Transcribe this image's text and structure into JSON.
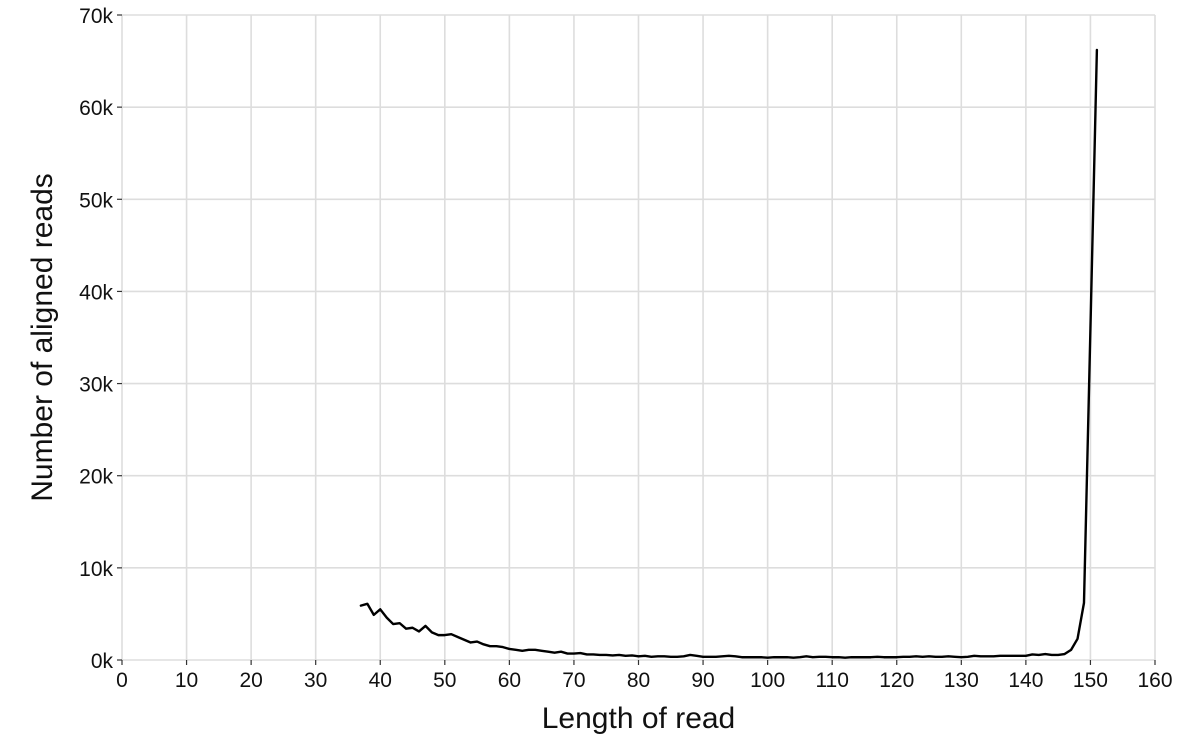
{
  "chart_data": {
    "type": "line",
    "xlabel": "Length of read",
    "ylabel": "Number of aligned reads",
    "xlim": [
      0,
      160
    ],
    "ylim": [
      0,
      70000
    ],
    "x_ticks": [
      0,
      10,
      20,
      30,
      40,
      50,
      60,
      70,
      80,
      90,
      100,
      110,
      120,
      130,
      140,
      150,
      160
    ],
    "x_tick_labels": [
      "0",
      "10",
      "20",
      "30",
      "40",
      "50",
      "60",
      "70",
      "80",
      "90",
      "100",
      "110",
      "120",
      "130",
      "140",
      "150",
      "160"
    ],
    "y_ticks": [
      0,
      10000,
      20000,
      30000,
      40000,
      50000,
      60000,
      70000
    ],
    "y_tick_labels": [
      "0k",
      "10k",
      "20k",
      "30k",
      "40k",
      "50k",
      "60k",
      "70k"
    ],
    "grid": true,
    "legend": "none",
    "line_color": "#000000",
    "x": [
      37,
      38,
      39,
      40,
      41,
      42,
      43,
      44,
      45,
      46,
      47,
      48,
      49,
      50,
      51,
      52,
      53,
      54,
      55,
      56,
      57,
      58,
      59,
      60,
      61,
      62,
      63,
      64,
      65,
      66,
      67,
      68,
      69,
      70,
      71,
      72,
      73,
      74,
      75,
      76,
      77,
      78,
      79,
      80,
      81,
      82,
      83,
      84,
      85,
      86,
      87,
      88,
      89,
      90,
      91,
      92,
      93,
      94,
      95,
      96,
      97,
      98,
      99,
      100,
      101,
      102,
      103,
      104,
      105,
      106,
      107,
      108,
      109,
      110,
      111,
      112,
      113,
      114,
      115,
      116,
      117,
      118,
      119,
      120,
      121,
      122,
      123,
      124,
      125,
      126,
      127,
      128,
      129,
      130,
      131,
      132,
      133,
      134,
      135,
      136,
      137,
      138,
      139,
      140,
      141,
      142,
      143,
      144,
      145,
      146,
      147,
      148,
      149,
      150,
      151
    ],
    "y": [
      5900,
      6100,
      4900,
      5500,
      4600,
      3900,
      4000,
      3400,
      3500,
      3100,
      3700,
      3000,
      2700,
      2700,
      2800,
      2500,
      2200,
      1900,
      2000,
      1700,
      1500,
      1500,
      1400,
      1200,
      1100,
      1000,
      1100,
      1100,
      1000,
      900,
      800,
      900,
      700,
      700,
      750,
      600,
      600,
      550,
      550,
      500,
      550,
      450,
      500,
      400,
      450,
      350,
      400,
      400,
      350,
      350,
      400,
      550,
      450,
      350,
      350,
      350,
      400,
      450,
      400,
      300,
      300,
      300,
      300,
      250,
      300,
      300,
      300,
      250,
      300,
      400,
      300,
      350,
      350,
      300,
      300,
      250,
      300,
      300,
      300,
      300,
      350,
      300,
      300,
      300,
      350,
      350,
      400,
      350,
      400,
      350,
      350,
      400,
      350,
      300,
      350,
      450,
      400,
      400,
      400,
      450,
      450,
      450,
      450,
      450,
      600,
      550,
      650,
      550,
      550,
      650,
      1100,
      2300,
      6200,
      36000,
      66200
    ]
  }
}
